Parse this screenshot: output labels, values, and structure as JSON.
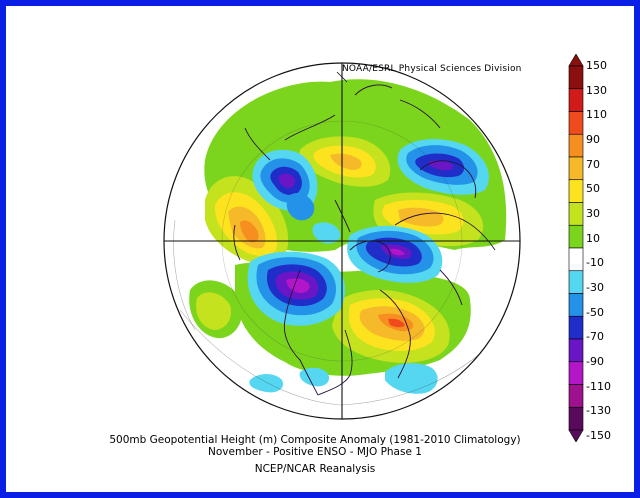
{
  "credit": "NOAA/ESRL Physical Sciences Division",
  "caption": {
    "line1": "500mb Geopotential Height (m) Composite Anomaly (1981-2010 Climatology)",
    "line2": "November - Positive ENSO - MJO Phase 1",
    "line3": "NCEP/NCAR Reanalysis"
  },
  "colorbar": {
    "labels": [
      "150",
      "130",
      "110",
      "90",
      "70",
      "50",
      "30",
      "10",
      "-10",
      "-30",
      "-50",
      "-70",
      "-90",
      "-110",
      "-130",
      "-150"
    ],
    "colors": [
      "#8b0f0f",
      "#d11a1a",
      "#ef4b1e",
      "#f78f20",
      "#f6b92a",
      "#fde31f",
      "#c5e21f",
      "#7cd51d",
      "#ffffff",
      "#55d7f2",
      "#2492e8",
      "#1f2ec8",
      "#6a16c7",
      "#b315c8",
      "#a0118f",
      "#5a0a5c"
    ]
  },
  "map": {
    "projection": "North Polar Stereographic",
    "frame_color": "#0a1ee6"
  }
}
